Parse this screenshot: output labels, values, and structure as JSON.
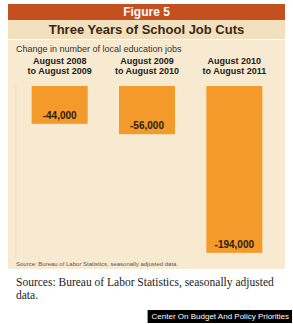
{
  "figure_label": "Figure 5",
  "chart_data": {
    "type": "bar",
    "title": "Three Years of School Job Cuts",
    "subtitle": "Change in number of local education jobs",
    "categories": [
      "August 2008 to August 2009",
      "August 2009 to August 2010",
      "August 2010 to August 2011"
    ],
    "values": [
      -44000,
      -56000,
      -194000
    ],
    "value_labels": [
      "-44,000",
      "-56,000",
      "-194,000"
    ],
    "color": "#f39a2b",
    "ylim": [
      -200000,
      0
    ],
    "data_labels": true,
    "tick_labels": false,
    "grid": false,
    "annotations": [
      "Source: Bureau of Labor Statistics, seasonally adjusted data."
    ]
  },
  "sources": "Sources: Bureau of Labor Statistics, seasonally adjusted data.",
  "credit": "Center On Budget And Policy Priorities"
}
